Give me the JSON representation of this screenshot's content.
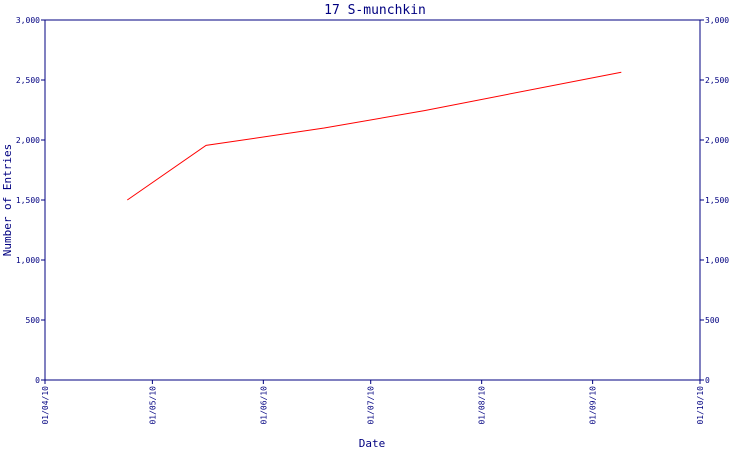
{
  "chart_data": {
    "type": "line",
    "title": "17 S-munchkin",
    "xlabel": "Date",
    "ylabel": "Number of Entries",
    "ylim": [
      0,
      3000
    ],
    "y_ticks": [
      "0",
      "500",
      "1,000",
      "1,500",
      "2,000",
      "2,500",
      "3,000"
    ],
    "y_tick_values": [
      0,
      500,
      1000,
      1500,
      2000,
      2500,
      3000
    ],
    "x_ticks": [
      "01/04/10",
      "01/05/10",
      "01/06/10",
      "01/07/10",
      "01/08/10",
      "01/09/10",
      "01/10/10"
    ],
    "grid": false,
    "series": [
      {
        "color": "#ff0000",
        "points": [
          {
            "x": "2010-04-24",
            "y": 1500
          },
          {
            "x": "2010-05-16",
            "y": 1955
          },
          {
            "x": "2010-06-18",
            "y": 2100
          },
          {
            "x": "2010-07-16",
            "y": 2245
          },
          {
            "x": "2010-09-09",
            "y": 2565
          }
        ]
      }
    ]
  },
  "colors": {
    "axis": "#000080",
    "line": "#ff0000"
  }
}
